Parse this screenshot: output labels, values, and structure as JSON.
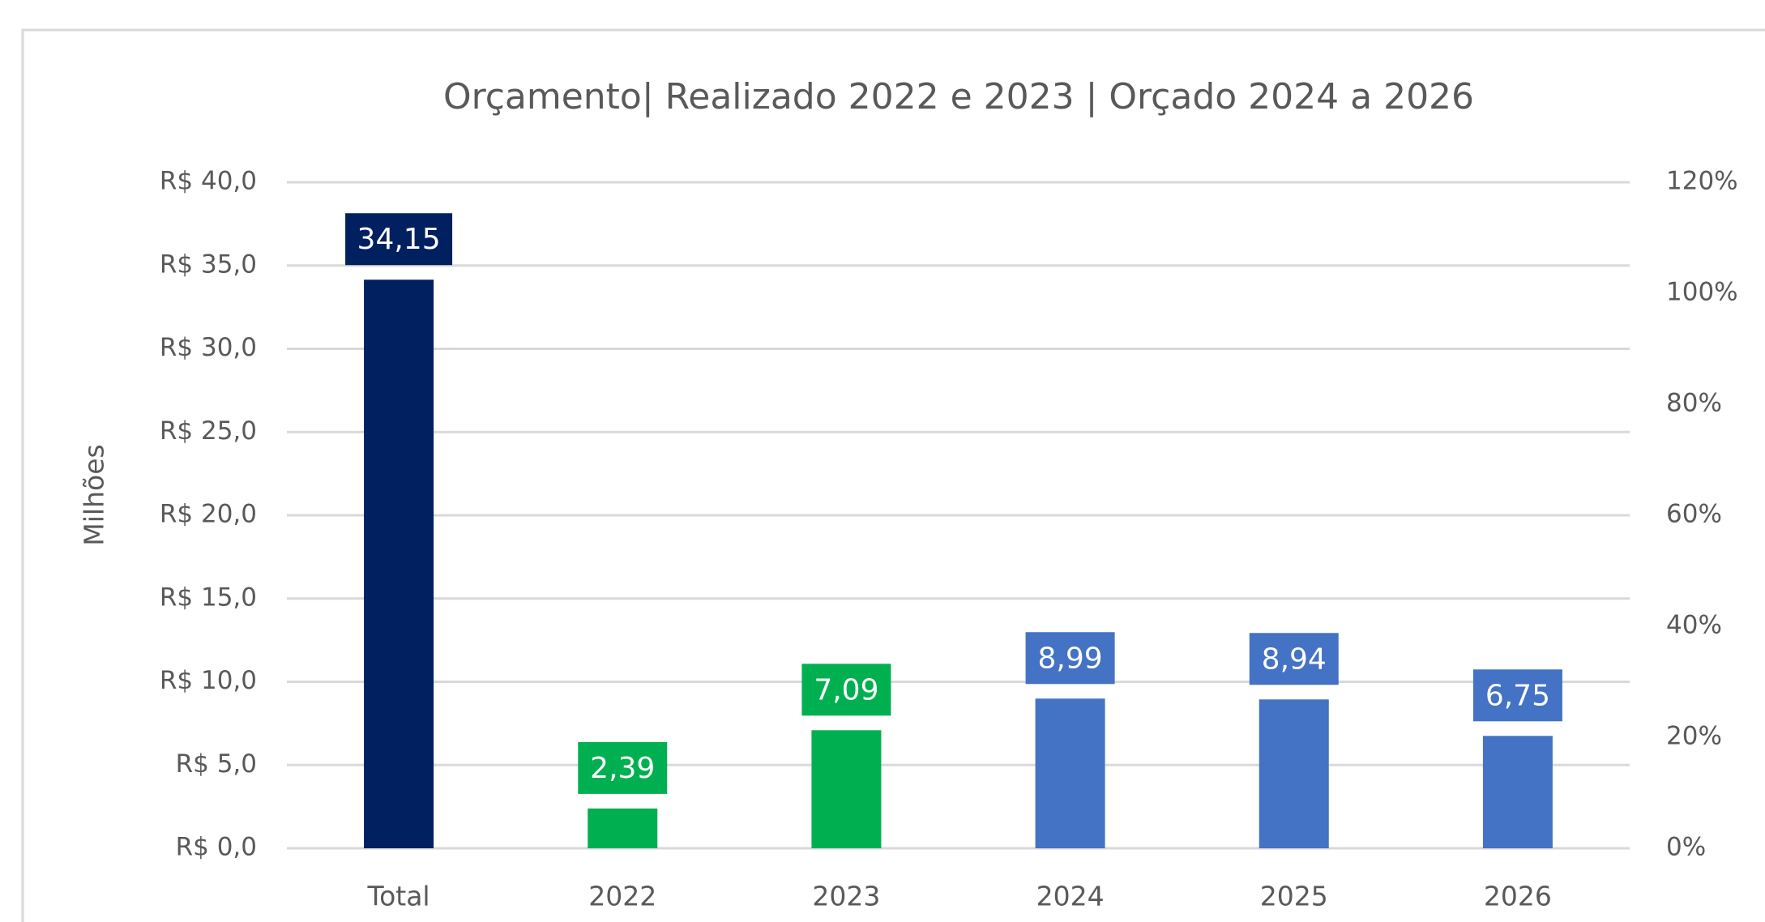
{
  "chart_data": {
    "type": "bar",
    "title": "Orçamento| Realizado 2022 e 2023 | Orçado 2024 a 2026",
    "y_label": "Milhões",
    "categories": [
      "Total",
      "2022",
      "2023",
      "2024",
      "2025",
      "2026"
    ],
    "values": [
      34.15,
      2.39,
      7.09,
      8.99,
      8.94,
      6.75
    ],
    "value_labels": [
      "34,15",
      "2,39",
      "7,09",
      "8,99",
      "8,94",
      "6,75"
    ],
    "colors": [
      "#002060",
      "#00b050",
      "#00b050",
      "#4472c4",
      "#4472c4",
      "#4472c4"
    ],
    "ylim": [
      0,
      40
    ],
    "yticks": [
      {
        "value": 0,
        "label": "R$ 0,0"
      },
      {
        "value": 5,
        "label": "R$ 5,0"
      },
      {
        "value": 10,
        "label": "R$ 10,0"
      },
      {
        "value": 15,
        "label": "R$ 15,0"
      },
      {
        "value": 20,
        "label": "R$ 20,0"
      },
      {
        "value": 25,
        "label": "R$ 25,0"
      },
      {
        "value": 30,
        "label": "R$ 30,0"
      },
      {
        "value": 35,
        "label": "R$ 35,0"
      },
      {
        "value": 40,
        "label": "R$ 40,0"
      }
    ],
    "y2lim": [
      0,
      120
    ],
    "y2ticks": [
      {
        "value": 0,
        "label": "0%"
      },
      {
        "value": 20,
        "label": "20%"
      },
      {
        "value": 40,
        "label": "40%"
      },
      {
        "value": 60,
        "label": "60%"
      },
      {
        "value": 80,
        "label": "80%"
      },
      {
        "value": 100,
        "label": "100%"
      },
      {
        "value": 120,
        "label": "120%"
      }
    ],
    "grid": true
  }
}
